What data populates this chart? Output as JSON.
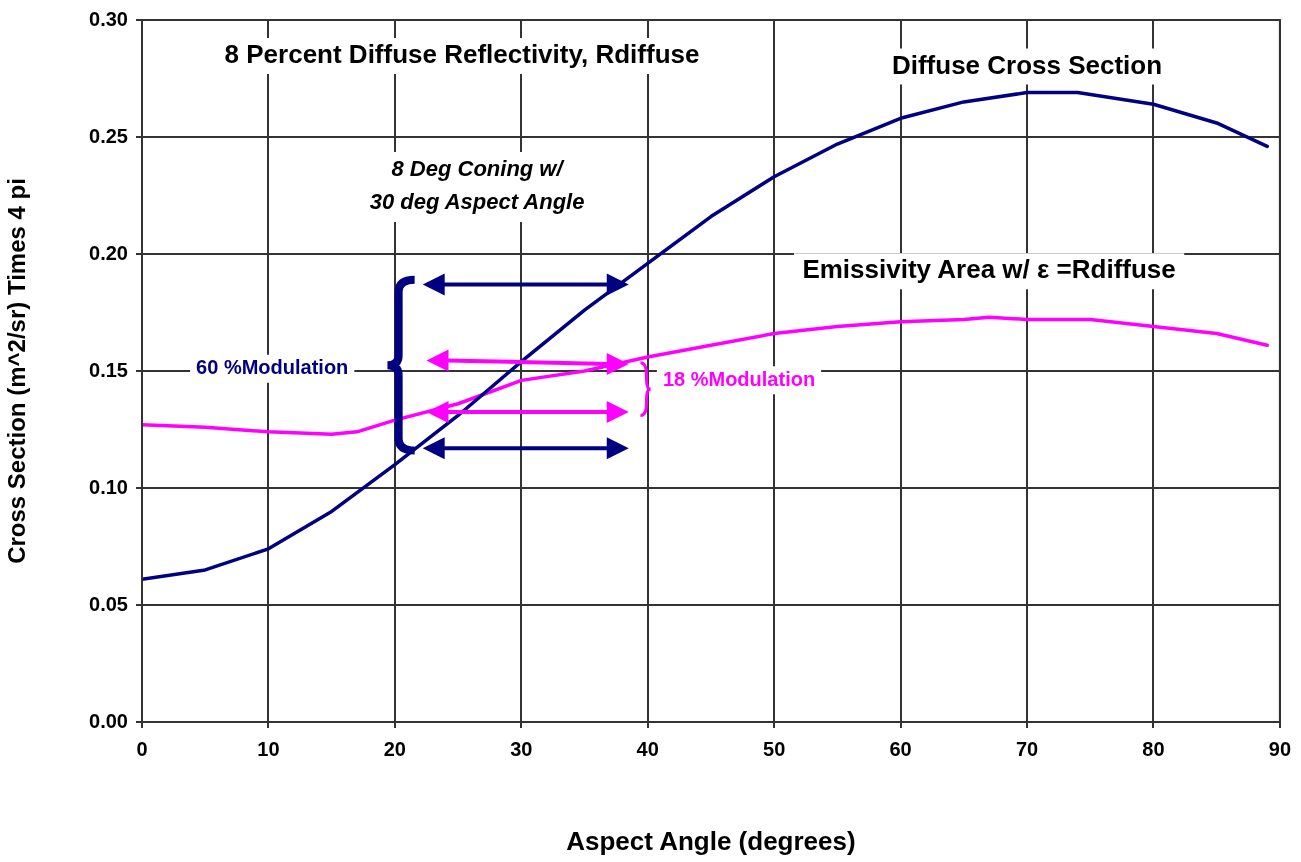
{
  "chart_data": {
    "type": "line",
    "title": "8 Percent Diffuse Reflectivity, Rdiffuse",
    "xlabel": "Aspect Angle (degrees)",
    "ylabel": "Cross Section (m^2/sr) Times 4 pi",
    "xlim": [
      0,
      90
    ],
    "xticks": [
      0,
      10,
      20,
      30,
      40,
      50,
      60,
      70,
      80,
      90
    ],
    "ylim": [
      0,
      0.3
    ],
    "yticks": [
      {
        "value": 0,
        "label": "0.00"
      },
      {
        "value": 0.05,
        "label": "0.05"
      },
      {
        "value": 0.1,
        "label": "0.10"
      },
      {
        "value": 0.15,
        "label": "0.15"
      },
      {
        "value": 0.2,
        "label": "0.20"
      },
      {
        "value": 0.25,
        "label": "0.25"
      },
      {
        "value": 0.3,
        "label": "0.30"
      }
    ],
    "grid": true,
    "legend": false,
    "marker": "none",
    "line_style": "solid",
    "series": [
      {
        "name": "Diffuse Cross Section",
        "color": "#000080",
        "x": [
          0,
          5,
          10,
          15,
          20,
          25,
          30,
          35,
          40,
          45,
          50,
          55,
          60,
          65,
          70,
          74,
          80,
          85,
          89
        ],
        "values": [
          0.061,
          0.065,
          0.074,
          0.09,
          0.11,
          0.131,
          0.154,
          0.176,
          0.196,
          0.216,
          0.233,
          0.247,
          0.258,
          0.265,
          0.269,
          0.269,
          0.264,
          0.256,
          0.246
        ]
      },
      {
        "name": "Emissivity Area w/ ε =Rdiffuse",
        "color": "#ff00ff",
        "x": [
          0,
          5,
          10,
          15,
          17,
          20,
          25,
          30,
          35,
          40,
          45,
          50,
          55,
          60,
          65,
          67,
          70,
          75,
          80,
          85,
          89
        ],
        "values": [
          0.127,
          0.126,
          0.124,
          0.123,
          0.124,
          0.129,
          0.136,
          0.146,
          0.15,
          0.156,
          0.161,
          0.166,
          0.169,
          0.171,
          0.172,
          0.173,
          0.172,
          0.172,
          0.169,
          0.166,
          0.161
        ]
      }
    ],
    "annotations": [
      "8 Deg Coning w/\n30 deg Aspect Angle",
      "60 %Modulation",
      "18 %Modulation"
    ]
  }
}
